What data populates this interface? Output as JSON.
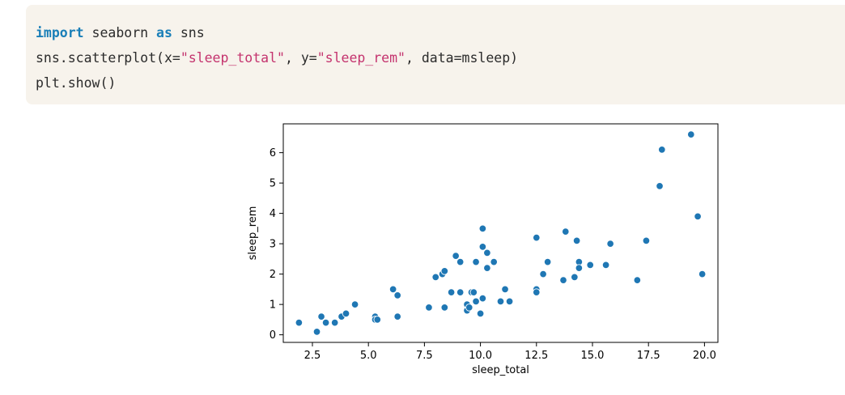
{
  "code": {
    "line1": {
      "kw1": "import",
      "mid": " seaborn ",
      "kw2": "as",
      "end": " sns"
    },
    "line2": {
      "pre": "sns.scatterplot(x=",
      "s1": "\"sleep_total\"",
      "mid": ", y=",
      "s2": "\"sleep_rem\"",
      "post": ", data=msleep)"
    },
    "line3": "plt.show()"
  },
  "colors": {
    "code_bg": "#f7f3ec",
    "keyword": "#1a7fb8",
    "string": "#c4336e",
    "marker": "#1f77b4"
  },
  "chart_data": {
    "type": "scatter",
    "title": "",
    "xlabel": "sleep_total",
    "ylabel": "sleep_rem",
    "xlim": [
      1.2,
      20.6
    ],
    "ylim": [
      -0.25,
      6.95
    ],
    "xticks": [
      2.5,
      5.0,
      7.5,
      10.0,
      12.5,
      15.0,
      17.5,
      20.0
    ],
    "xtick_labels": [
      "2.5",
      "5.0",
      "7.5",
      "10.0",
      "12.5",
      "15.0",
      "17.5",
      "20.0"
    ],
    "yticks": [
      0,
      1,
      2,
      3,
      4,
      5,
      6
    ],
    "ytick_labels": [
      "0",
      "1",
      "2",
      "3",
      "4",
      "5",
      "6"
    ],
    "grid": false,
    "points": [
      {
        "x": 1.9,
        "y": 0.4
      },
      {
        "x": 2.7,
        "y": 0.1
      },
      {
        "x": 2.9,
        "y": 0.6
      },
      {
        "x": 3.1,
        "y": 0.4
      },
      {
        "x": 3.5,
        "y": 0.4
      },
      {
        "x": 3.8,
        "y": 0.6
      },
      {
        "x": 4.0,
        "y": 0.7
      },
      {
        "x": 4.4,
        "y": 1.0
      },
      {
        "x": 5.3,
        "y": 0.6
      },
      {
        "x": 5.3,
        "y": 0.5
      },
      {
        "x": 5.4,
        "y": 0.5
      },
      {
        "x": 6.1,
        "y": 1.5
      },
      {
        "x": 6.3,
        "y": 1.3
      },
      {
        "x": 6.3,
        "y": 0.6
      },
      {
        "x": 7.7,
        "y": 0.9
      },
      {
        "x": 8.0,
        "y": 1.9
      },
      {
        "x": 8.3,
        "y": 2.0
      },
      {
        "x": 8.4,
        "y": 2.1
      },
      {
        "x": 8.4,
        "y": 0.9
      },
      {
        "x": 8.7,
        "y": 1.4
      },
      {
        "x": 8.9,
        "y": 2.6
      },
      {
        "x": 9.1,
        "y": 2.4
      },
      {
        "x": 9.1,
        "y": 1.4
      },
      {
        "x": 9.4,
        "y": 1.0
      },
      {
        "x": 9.4,
        "y": 0.8
      },
      {
        "x": 9.5,
        "y": 0.9
      },
      {
        "x": 9.6,
        "y": 1.4
      },
      {
        "x": 9.7,
        "y": 1.4
      },
      {
        "x": 9.8,
        "y": 2.4
      },
      {
        "x": 9.8,
        "y": 1.1
      },
      {
        "x": 10.0,
        "y": 0.7
      },
      {
        "x": 10.1,
        "y": 3.5
      },
      {
        "x": 10.1,
        "y": 2.9
      },
      {
        "x": 10.1,
        "y": 1.2
      },
      {
        "x": 10.3,
        "y": 2.7
      },
      {
        "x": 10.3,
        "y": 2.2
      },
      {
        "x": 10.6,
        "y": 2.4
      },
      {
        "x": 10.9,
        "y": 1.1
      },
      {
        "x": 11.1,
        "y": 1.5
      },
      {
        "x": 11.3,
        "y": 1.1
      },
      {
        "x": 12.5,
        "y": 3.2
      },
      {
        "x": 12.5,
        "y": 1.5
      },
      {
        "x": 12.5,
        "y": 1.4
      },
      {
        "x": 12.8,
        "y": 2.0
      },
      {
        "x": 13.0,
        "y": 2.4
      },
      {
        "x": 13.7,
        "y": 1.8
      },
      {
        "x": 13.8,
        "y": 3.4
      },
      {
        "x": 14.2,
        "y": 1.9
      },
      {
        "x": 14.3,
        "y": 3.1
      },
      {
        "x": 14.4,
        "y": 2.4
      },
      {
        "x": 14.4,
        "y": 2.2
      },
      {
        "x": 14.9,
        "y": 2.3
      },
      {
        "x": 15.6,
        "y": 2.3
      },
      {
        "x": 15.8,
        "y": 3.0
      },
      {
        "x": 17.0,
        "y": 1.8
      },
      {
        "x": 17.4,
        "y": 3.1
      },
      {
        "x": 18.0,
        "y": 4.9
      },
      {
        "x": 18.1,
        "y": 6.1
      },
      {
        "x": 19.4,
        "y": 6.6
      },
      {
        "x": 19.7,
        "y": 3.9
      },
      {
        "x": 19.9,
        "y": 2.0
      }
    ]
  }
}
